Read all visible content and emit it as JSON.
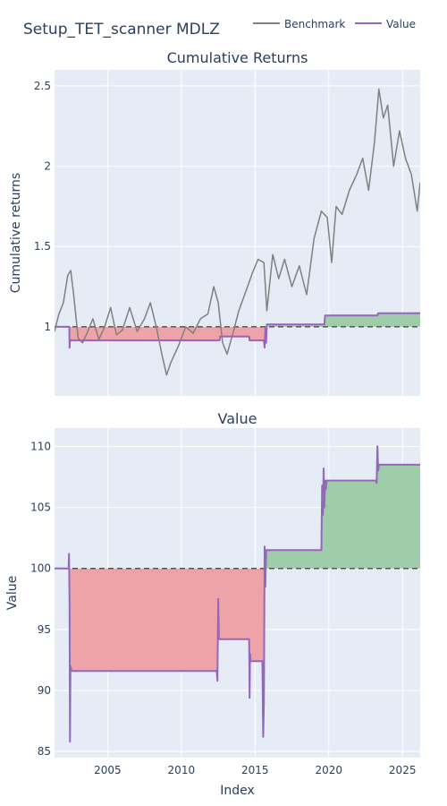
{
  "title": "Setup_TET_scanner MDLZ",
  "legend": [
    {
      "name": "Benchmark",
      "color": "#808080"
    },
    {
      "name": "Value",
      "color": "#9467bd"
    }
  ],
  "colors": {
    "plot_bg": "#e5ecf6",
    "grid": "#ffffff",
    "gain_fill": "#9fcca9",
    "loss_fill": "#eea3a8",
    "baseline": "#555555"
  },
  "chart_data": [
    {
      "type": "line",
      "title": "Cumulative Returns",
      "ylabel": "Cumulative returns",
      "xlabel": "",
      "xlim": [
        2001.4,
        2026.2
      ],
      "ylim": [
        0.57,
        2.6
      ],
      "yticks": [
        1,
        1.5,
        2,
        2.5
      ],
      "ytick_labels": [
        "1",
        "1.5",
        "2",
        "2.5"
      ],
      "xticks": [
        2005,
        2010,
        2015,
        2020,
        2025
      ],
      "baseline": 1,
      "series": [
        {
          "name": "Benchmark",
          "x": [
            2001.4,
            2001.7,
            2002.0,
            2002.3,
            2002.5,
            2002.7,
            2003.0,
            2003.3,
            2003.6,
            2004.0,
            2004.4,
            2004.8,
            2005.2,
            2005.6,
            2006.0,
            2006.5,
            2007.0,
            2007.5,
            2007.9,
            2008.3,
            2008.7,
            2009.0,
            2009.3,
            2009.8,
            2010.3,
            2010.8,
            2011.3,
            2011.8,
            2012.2,
            2012.5,
            2012.8,
            2013.1,
            2013.5,
            2013.9,
            2014.3,
            2014.8,
            2015.2,
            2015.6,
            2015.8,
            2016.2,
            2016.6,
            2017.0,
            2017.5,
            2018.0,
            2018.5,
            2019.0,
            2019.5,
            2019.9,
            2020.2,
            2020.5,
            2020.9,
            2021.4,
            2021.9,
            2022.3,
            2022.7,
            2023.1,
            2023.4,
            2023.7,
            2024.0,
            2024.4,
            2024.8,
            2025.2,
            2025.6,
            2026.0,
            2026.2
          ],
          "y": [
            0.97,
            1.08,
            1.15,
            1.32,
            1.35,
            1.2,
            0.93,
            0.9,
            0.96,
            1.05,
            0.92,
            1.0,
            1.12,
            0.95,
            0.98,
            1.12,
            0.97,
            1.05,
            1.15,
            1.0,
            0.82,
            0.7,
            0.78,
            0.88,
            1.0,
            0.96,
            1.05,
            1.08,
            1.25,
            1.15,
            0.9,
            0.83,
            0.96,
            1.1,
            1.2,
            1.33,
            1.42,
            1.4,
            1.1,
            1.45,
            1.3,
            1.42,
            1.25,
            1.38,
            1.2,
            1.55,
            1.72,
            1.68,
            1.4,
            1.75,
            1.7,
            1.85,
            1.95,
            2.05,
            1.85,
            2.15,
            2.48,
            2.3,
            2.38,
            2.0,
            2.22,
            2.05,
            1.95,
            1.72,
            1.9
          ]
        },
        {
          "name": "Value",
          "x": [
            2001.4,
            2002.4,
            2002.42,
            2002.45,
            2012.6,
            2012.63,
            2014.6,
            2014.63,
            2015.6,
            2015.65,
            2015.7,
            2015.75,
            2015.8,
            2019.7,
            2019.75,
            2019.8,
            2023.3,
            2023.35,
            2026.2
          ],
          "y": [
            1.0,
            1.0,
            0.87,
            0.915,
            0.915,
            0.94,
            0.94,
            0.915,
            0.915,
            0.87,
            0.99,
            0.9,
            1.015,
            1.015,
            1.07,
            1.07,
            1.07,
            1.085,
            1.085
          ]
        }
      ]
    },
    {
      "type": "line",
      "title": "Value",
      "ylabel": "Value",
      "xlabel": "Index",
      "xlim": [
        2001.4,
        2026.2
      ],
      "ylim": [
        84.5,
        111.5
      ],
      "yticks": [
        85,
        90,
        95,
        100,
        105,
        110
      ],
      "ytick_labels": [
        "85",
        "90",
        "95",
        "100",
        "105",
        "110"
      ],
      "xticks": [
        2005,
        2010,
        2015,
        2020,
        2025
      ],
      "xtick_labels": [
        "2005",
        "2010",
        "2015",
        "2020",
        "2025"
      ],
      "baseline": 100,
      "series": [
        {
          "name": "Value",
          "x": [
            2001.4,
            2002.35,
            2002.38,
            2002.42,
            2002.45,
            2002.48,
            2002.55,
            2012.4,
            2012.45,
            2012.5,
            2012.55,
            2014.6,
            2014.63,
            2014.66,
            2014.7,
            2015.5,
            2015.55,
            2015.6,
            2015.65,
            2015.7,
            2015.75,
            2019.5,
            2019.55,
            2019.6,
            2019.65,
            2019.7,
            2019.75,
            2019.8,
            2019.85,
            2023.2,
            2023.25,
            2023.3,
            2023.35,
            2023.4,
            2026.2
          ],
          "y": [
            100.0,
            100.0,
            101.2,
            97.0,
            85.8,
            92.0,
            91.6,
            91.6,
            90.8,
            97.5,
            94.2,
            94.2,
            89.4,
            93.0,
            92.4,
            92.4,
            86.2,
            89.0,
            101.8,
            98.5,
            101.5,
            101.5,
            106.8,
            104.4,
            108.2,
            105.0,
            107.2,
            106.5,
            107.2,
            107.2,
            107.0,
            110.0,
            108.0,
            108.5,
            108.5
          ]
        }
      ]
    }
  ]
}
